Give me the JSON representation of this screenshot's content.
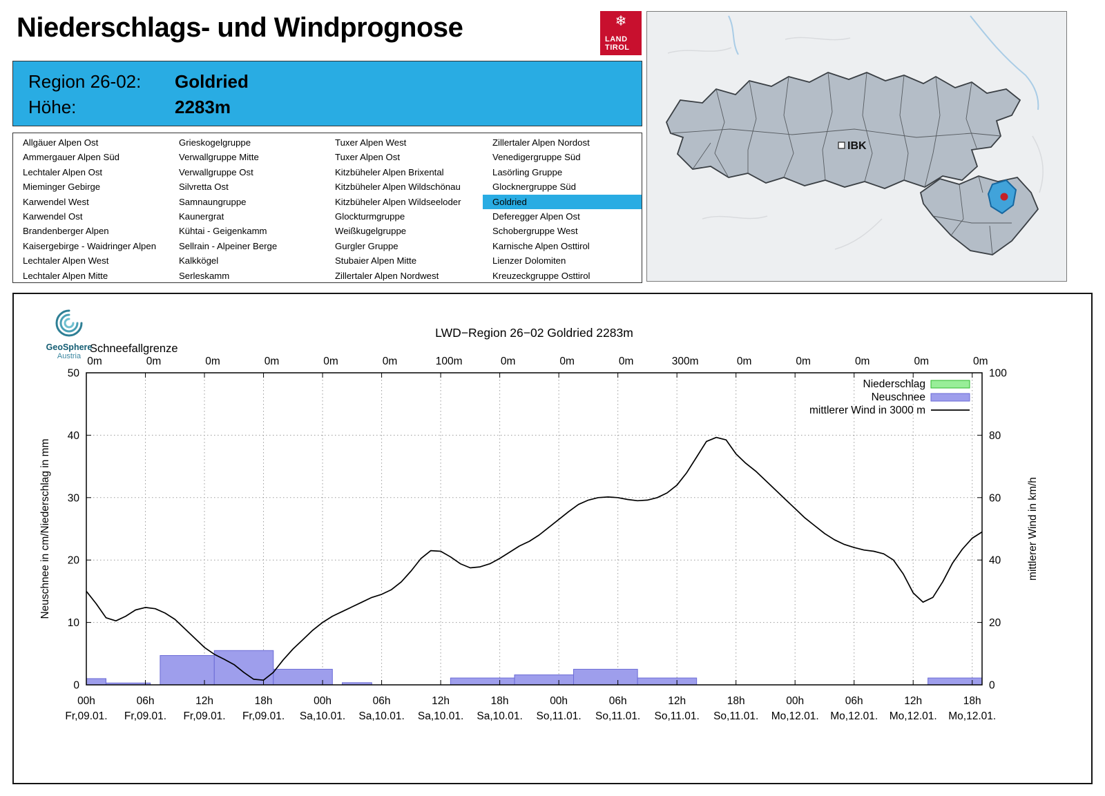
{
  "header": {
    "title": "Niederschlags- und Windprognose"
  },
  "brand": {
    "name_line1": "LAND",
    "name_line2": "TIROL",
    "snowflake_icon": "❄"
  },
  "region_info": {
    "region_label": "Region 26-02:",
    "region_value": "Goldried",
    "altitude_label": "Höhe:",
    "altitude_value": "2283m"
  },
  "region_list": {
    "selected": "Goldried",
    "columns": [
      [
        "Allgäuer Alpen Ost",
        "Ammergauer Alpen Süd",
        "Lechtaler Alpen Ost",
        "Mieminger Gebirge",
        "Karwendel West",
        "Karwendel Ost",
        "Brandenberger Alpen",
        "Kaisergebirge - Waidringer Alpen",
        "Lechtaler Alpen West",
        "Lechtaler Alpen Mitte"
      ],
      [
        "Grieskogelgruppe",
        "Verwallgruppe Mitte",
        "Verwallgruppe Ost",
        "Silvretta Ost",
        "Samnaungruppe",
        "Kaunergrat",
        "Kühtai - Geigenkamm",
        "Sellrain - Alpeiner Berge",
        "Kalkkögel",
        "Serleskamm"
      ],
      [
        "Tuxer Alpen West",
        "Tuxer Alpen Ost",
        "Kitzbüheler Alpen Brixental",
        "Kitzbüheler Alpen Wildschönau",
        "Kitzbüheler Alpen Wildseeloder",
        "Glockturmgruppe",
        "Weißkugelgruppe",
        "Gurgler Gruppe",
        "Stubaier Alpen Mitte",
        "Zillertaler Alpen Nordwest"
      ],
      [
        "Zillertaler Alpen Nordost",
        "Venedigergruppe Süd",
        "Lasörling Gruppe",
        "Glocknergruppe Süd",
        "Goldried",
        "Deferegger Alpen Ost",
        "Schobergruppe West",
        "Karnische Alpen Osttirol",
        "Lienzer Dolomiten",
        "Kreuzeckgruppe Osttirol"
      ]
    ]
  },
  "map": {
    "city_label": "IBK"
  },
  "geosphere": {
    "name": "GeoSphere",
    "country": "Austria"
  },
  "colors": {
    "accent": "#29ace3",
    "map_region_fill": "#b4bdc7",
    "map_selected": "#41a3da",
    "map_marker": "#c42127"
  },
  "chart_data": {
    "type": "composite-bar-line",
    "title": "LWD−Region 26−02 Goldried 2283m",
    "x_hours_max": 91,
    "snowline": {
      "label": "Schneefallgrenze",
      "values": [
        "0m",
        "0m",
        "0m",
        "0m",
        "0m",
        "0m",
        "100m",
        "0m",
        "0m",
        "0m",
        "300m",
        "0m",
        "0m",
        "0m",
        "0m",
        "0m"
      ]
    },
    "x_ticks": {
      "times": [
        "00h",
        "06h",
        "12h",
        "18h",
        "00h",
        "06h",
        "12h",
        "18h",
        "00h",
        "06h",
        "12h",
        "18h",
        "00h",
        "06h",
        "12h",
        "18h"
      ],
      "dates": [
        "Fr,09.01.",
        "Fr,09.01.",
        "Fr,09.01.",
        "Fr,09.01.",
        "Sa,10.01.",
        "Sa,10.01.",
        "Sa,10.01.",
        "Sa,10.01.",
        "So,11.01.",
        "So,11.01.",
        "So,11.01.",
        "So,11.01.",
        "Mo,12.01.",
        "Mo,12.01.",
        "Mo,12.01.",
        "Mo,12.01."
      ]
    },
    "y_left": {
      "label": "Neuschnee in cm/Niederschlag in mm",
      "min": 0,
      "max": 50,
      "ticks": [
        0,
        10,
        20,
        30,
        40,
        50
      ]
    },
    "y_right": {
      "label": "mittlerer Wind in km/h",
      "min": 0,
      "max": 100,
      "ticks": [
        0,
        20,
        40,
        60,
        80,
        100
      ]
    },
    "legend": [
      {
        "label": "Niederschlag",
        "type": "box"
      },
      {
        "label": "Neuschnee",
        "type": "box"
      },
      {
        "label": "mittlerer Wind in 3000 m",
        "type": "line"
      }
    ],
    "colors": {
      "niederschlag_fill": "#98ee98",
      "niederschlag_stroke": "#2db82d",
      "neuschnee_fill": "#9e9eec",
      "neuschnee_stroke": "#6b6bd6",
      "wind": "#000000"
    },
    "bars_neuschnee": [
      {
        "from_h": 0,
        "to_h": 2,
        "cm": 1.0
      },
      {
        "from_h": 2,
        "to_h": 6.5,
        "cm": 0.3
      },
      {
        "from_h": 7.5,
        "to_h": 13,
        "cm": 4.7
      },
      {
        "from_h": 13,
        "to_h": 19,
        "cm": 5.5
      },
      {
        "from_h": 19,
        "to_h": 25,
        "cm": 2.5
      },
      {
        "from_h": 26,
        "to_h": 29,
        "cm": 0.35
      },
      {
        "from_h": 37,
        "to_h": 43.5,
        "cm": 1.1
      },
      {
        "from_h": 43.5,
        "to_h": 49.5,
        "cm": 1.6
      },
      {
        "from_h": 49.5,
        "to_h": 56,
        "cm": 2.5
      },
      {
        "from_h": 56,
        "to_h": 62,
        "cm": 1.1
      },
      {
        "from_h": 85.5,
        "to_h": 91,
        "cm": 1.1
      }
    ],
    "wind_series": {
      "name": "mittlerer Wind in 3000 m",
      "unit": "km/h",
      "points": [
        [
          0,
          30
        ],
        [
          1,
          26
        ],
        [
          2,
          21.5
        ],
        [
          3,
          20.5
        ],
        [
          4,
          22
        ],
        [
          5,
          24
        ],
        [
          6,
          24.8
        ],
        [
          7,
          24.4
        ],
        [
          8,
          23
        ],
        [
          9,
          21
        ],
        [
          10,
          18
        ],
        [
          11,
          15
        ],
        [
          12,
          12
        ],
        [
          13,
          9.8
        ],
        [
          14,
          8.2
        ],
        [
          15,
          6.5
        ],
        [
          16,
          4
        ],
        [
          17,
          1.8
        ],
        [
          18,
          1.5
        ],
        [
          19,
          4
        ],
        [
          20,
          8
        ],
        [
          21,
          11.5
        ],
        [
          22,
          14.5
        ],
        [
          23,
          17.5
        ],
        [
          24,
          20
        ],
        [
          25,
          22
        ],
        [
          26,
          23.5
        ],
        [
          27,
          25
        ],
        [
          28,
          26.5
        ],
        [
          29,
          28
        ],
        [
          30,
          29
        ],
        [
          31,
          30.5
        ],
        [
          32,
          33
        ],
        [
          33,
          36.5
        ],
        [
          34,
          40.5
        ],
        [
          35,
          43
        ],
        [
          36,
          42.8
        ],
        [
          37,
          41
        ],
        [
          38,
          38.8
        ],
        [
          39,
          37.5
        ],
        [
          40,
          37.8
        ],
        [
          41,
          38.8
        ],
        [
          42,
          40.5
        ],
        [
          43,
          42.5
        ],
        [
          44,
          44.5
        ],
        [
          45,
          46
        ],
        [
          46,
          48
        ],
        [
          47,
          50.5
        ],
        [
          48,
          53
        ],
        [
          49,
          55.5
        ],
        [
          50,
          57.8
        ],
        [
          51,
          59.2
        ],
        [
          52,
          60
        ],
        [
          53,
          60.2
        ],
        [
          54,
          60
        ],
        [
          55,
          59.4
        ],
        [
          56,
          59
        ],
        [
          57,
          59.2
        ],
        [
          58,
          60
        ],
        [
          59,
          61.5
        ],
        [
          60,
          64
        ],
        [
          61,
          68
        ],
        [
          62,
          73
        ],
        [
          63,
          78
        ],
        [
          64,
          79.3
        ],
        [
          65,
          78.5
        ],
        [
          66,
          74
        ],
        [
          67,
          71
        ],
        [
          68,
          68.5
        ],
        [
          69,
          65.5
        ],
        [
          70,
          62.5
        ],
        [
          71,
          59.5
        ],
        [
          72,
          56.5
        ],
        [
          73,
          53.5
        ],
        [
          74,
          51
        ],
        [
          75,
          48.5
        ],
        [
          76,
          46.5
        ],
        [
          77,
          45
        ],
        [
          78,
          44
        ],
        [
          79,
          43.2
        ],
        [
          80,
          42.8
        ],
        [
          81,
          42
        ],
        [
          82,
          40
        ],
        [
          83,
          35.5
        ],
        [
          84,
          29.5
        ],
        [
          85,
          26.5
        ],
        [
          86,
          28
        ],
        [
          87,
          33
        ],
        [
          88,
          39
        ],
        [
          89,
          43.5
        ],
        [
          90,
          47
        ],
        [
          91,
          49
        ]
      ]
    }
  }
}
